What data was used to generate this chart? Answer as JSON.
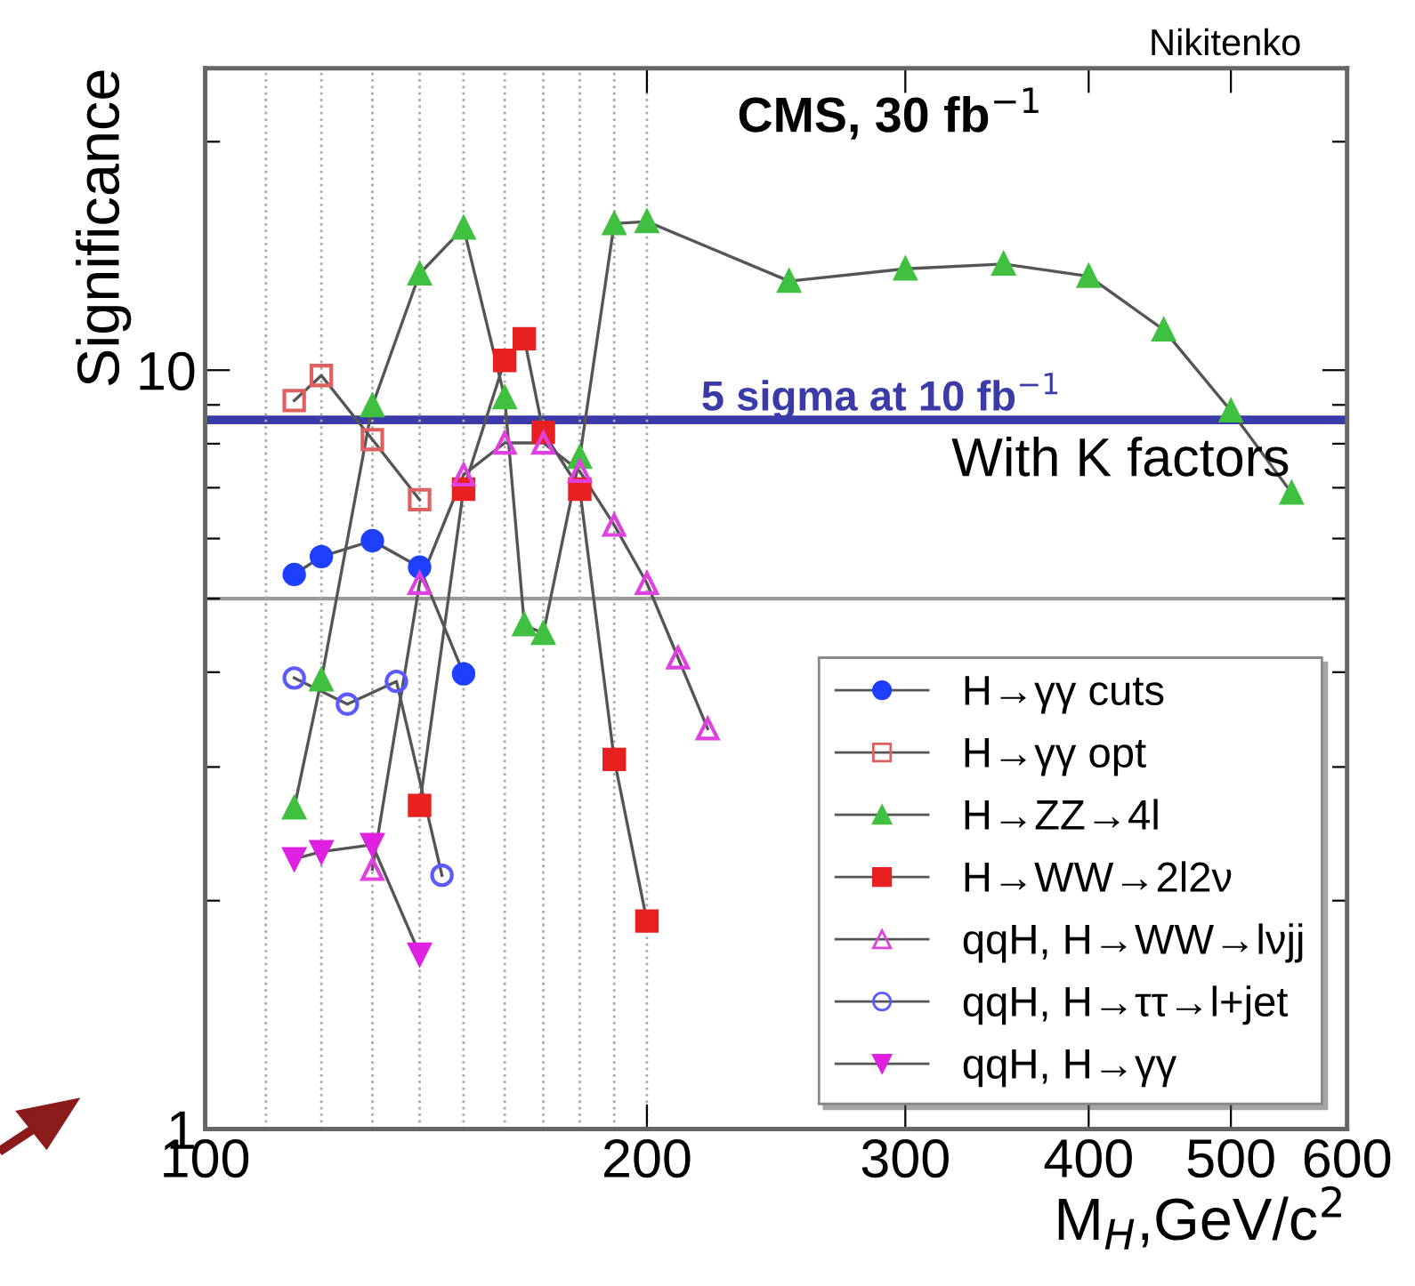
{
  "chart_data": {
    "type": "line",
    "xlabel": "M$_{H}$,GeV/c$^{2}$",
    "ylabel": "Significance",
    "log": "xy",
    "xlim": [
      100,
      600
    ],
    "ylim": [
      1,
      25
    ],
    "xticks": [
      100,
      200,
      300,
      400,
      500,
      600
    ],
    "yticks": [
      1,
      {
        "value": 2,
        "label": null
      },
      {
        "value": 3,
        "label": null
      },
      {
        "value": 4,
        "label": null
      },
      {
        "value": 5,
        "label": null
      },
      {
        "value": 6,
        "label": null
      },
      {
        "value": 7,
        "label": null
      },
      {
        "value": 8,
        "label": null
      },
      {
        "value": 9,
        "label": null
      },
      10,
      {
        "value": 20,
        "label": null
      }
    ],
    "grid": false,
    "legend": "bottom right",
    "annotations": [
      "CMS, 30 fb$^{−1}$",
      "Nikitenko",
      "With K factors"
    ],
    "ref_lines": [
      {
        "axis": "y",
        "value": 8.6,
        "label": "5 sigma at 10 fb$^{−1}$",
        "color": "#3a3aa8",
        "line_style": "solid"
      },
      {
        "axis": "y",
        "value": 5,
        "color": "#999999",
        "line_style": "solid"
      },
      {
        "axis": "x",
        "value": 110,
        "color": "#aaaaaa",
        "line_style": "dotted"
      },
      {
        "axis": "x",
        "value": 120,
        "color": "#aaaaaa",
        "line_style": "dotted"
      },
      {
        "axis": "x",
        "value": 130,
        "color": "#aaaaaa",
        "line_style": "dotted"
      },
      {
        "axis": "x",
        "value": 140,
        "color": "#aaaaaa",
        "line_style": "dotted"
      },
      {
        "axis": "x",
        "value": 150,
        "color": "#aaaaaa",
        "line_style": "dotted"
      },
      {
        "axis": "x",
        "value": 160,
        "color": "#aaaaaa",
        "line_style": "dotted"
      },
      {
        "axis": "x",
        "value": 170,
        "color": "#aaaaaa",
        "line_style": "dotted"
      },
      {
        "axis": "x",
        "value": 180,
        "color": "#aaaaaa",
        "line_style": "dotted"
      },
      {
        "axis": "x",
        "value": 190,
        "color": "#aaaaaa",
        "line_style": "dotted"
      },
      {
        "axis": "x",
        "value": 200,
        "color": "#aaaaaa",
        "line_style": "dotted"
      }
    ],
    "series": [
      {
        "name": "H→γγ cuts",
        "color": "#1f3fff",
        "marker": "circle",
        "x": [
          115,
          120,
          130,
          140,
          150
        ],
        "values": [
          5.38,
          5.68,
          5.96,
          5.5,
          3.98
        ]
      },
      {
        "name": "H→γγ opt",
        "color": "#e06060",
        "marker": "square",
        "x": [
          115,
          120,
          130,
          140
        ],
        "values": [
          9.12,
          9.84,
          8.1,
          6.75
        ]
      },
      {
        "name": "H→ZZ→4l",
        "color": "#40c040",
        "marker": "triangle",
        "x": [
          115,
          120,
          130,
          140,
          150,
          160,
          165,
          170,
          180,
          190,
          200,
          250,
          300,
          350,
          400,
          450,
          500,
          550
        ],
        "values": [
          2.65,
          3.91,
          8.98,
          13.4,
          15.4,
          9.2,
          4.62,
          4.5,
          7.68,
          15.6,
          15.7,
          13.1,
          13.6,
          13.8,
          13.3,
          11.3,
          8.84,
          6.89
        ]
      },
      {
        "name": "H→WW→2l2ν",
        "color": "#e82020",
        "marker": "square",
        "x": [
          140,
          150,
          160,
          165,
          170,
          180,
          190,
          200
        ],
        "values": [
          2.67,
          6.97,
          10.3,
          11.0,
          8.28,
          6.97,
          3.07,
          1.88
        ]
      },
      {
        "name": "qqH, H→WW→lνjj",
        "color": "#e040e0",
        "marker": "triangle",
        "x": [
          130,
          140,
          150,
          160,
          170,
          180,
          190,
          200,
          210,
          220
        ],
        "values": [
          2.2,
          5.24,
          7.28,
          8.02,
          8.02,
          7.36,
          6.25,
          5.24,
          4.18,
          3.37
        ]
      },
      {
        "name": "qqH, H→ττ→l+jet",
        "color": "#5a5aff",
        "marker": "circle",
        "x": [
          115,
          125,
          135,
          145
        ],
        "values": [
          3.93,
          3.63,
          3.89,
          2.16
        ]
      },
      {
        "name": "qqH, H→γγ",
        "color": "#e020e0",
        "marker": "triangle_down",
        "x": [
          115,
          120,
          130,
          140
        ],
        "values": [
          2.27,
          2.32,
          2.37,
          1.7
        ]
      }
    ]
  }
}
